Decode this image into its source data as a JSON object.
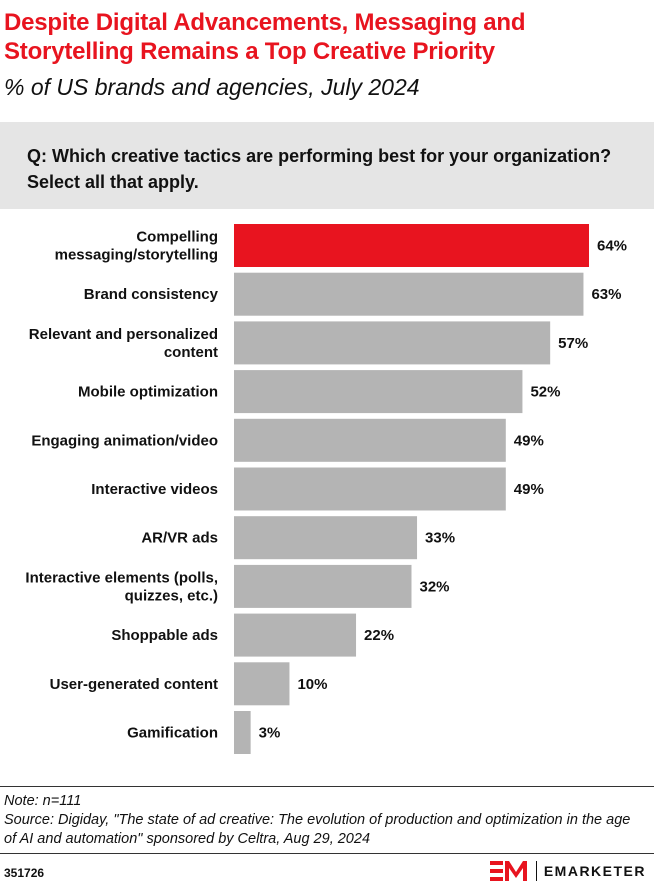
{
  "title": "Despite Digital Advancements, Messaging and Storytelling Remains a Top Creative Priority",
  "subtitle": "% of US brands and agencies, July 2024",
  "question": "Q: Which creative tactics are performing best for your organization? Select all that apply.",
  "colors": {
    "highlight": "#e8141f",
    "bar": "#b4b4b4",
    "title": "#e8141f"
  },
  "chart_data": {
    "type": "bar",
    "orientation": "horizontal",
    "categories": [
      [
        "Compelling",
        "messaging/storytelling"
      ],
      [
        "Brand consistency"
      ],
      [
        "Relevant and personalized",
        "content"
      ],
      [
        "Mobile optimization"
      ],
      [
        "Engaging animation/video"
      ],
      [
        "Interactive videos"
      ],
      [
        "AR/VR ads"
      ],
      [
        "Interactive elements (polls,",
        "quizzes, etc.)"
      ],
      [
        "Shoppable ads"
      ],
      [
        "User-generated content"
      ],
      [
        "Gamification"
      ]
    ],
    "values": [
      64,
      63,
      57,
      52,
      49,
      49,
      33,
      32,
      22,
      10,
      3
    ],
    "value_labels": [
      "64%",
      "63%",
      "57%",
      "52%",
      "49%",
      "49%",
      "33%",
      "32%",
      "22%",
      "10%",
      "3%"
    ],
    "highlight_index": 0,
    "xlim": [
      0,
      64
    ],
    "unit": "%",
    "grid": false,
    "legend": "none"
  },
  "footer": {
    "note": "Note: n=111",
    "source": "Source: Digiday, \"The state of ad creative: The evolution of production and optimization in the age of AI and automation\" sponsored by Celtra, Aug 29, 2024",
    "chart_id": "351726",
    "brand": "EMARKETER",
    "logo_icon": "em-logo-icon"
  }
}
